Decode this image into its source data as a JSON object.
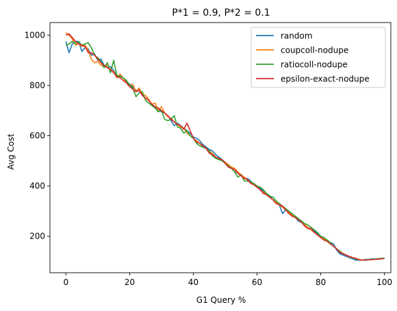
{
  "chart_data": {
    "type": "line",
    "title": "P*1 = 0.9, P*2 = 0.1",
    "xlabel": "G1 Query %",
    "ylabel": "Avg Cost",
    "xlim": [
      -5,
      102
    ],
    "ylim": [
      55,
      1050
    ],
    "xticks": [
      0,
      20,
      40,
      60,
      80,
      100
    ],
    "yticks": [
      200,
      400,
      600,
      800,
      1000
    ],
    "legend_position": "top-right",
    "x": [
      0,
      1,
      2,
      3,
      4,
      5,
      6,
      7,
      8,
      9,
      10,
      11,
      12,
      13,
      14,
      15,
      16,
      17,
      18,
      19,
      20,
      21,
      22,
      23,
      24,
      25,
      26,
      27,
      28,
      29,
      30,
      31,
      32,
      33,
      34,
      35,
      36,
      37,
      38,
      39,
      40,
      41,
      42,
      43,
      44,
      45,
      46,
      47,
      48,
      49,
      50,
      51,
      52,
      53,
      54,
      55,
      56,
      57,
      58,
      59,
      60,
      61,
      62,
      63,
      64,
      65,
      66,
      67,
      68,
      69,
      70,
      71,
      72,
      73,
      74,
      75,
      76,
      77,
      78,
      79,
      80,
      81,
      82,
      83,
      84,
      85,
      86,
      87,
      88,
      89,
      90,
      91,
      92,
      93,
      94,
      95,
      96,
      97,
      98,
      99,
      100
    ],
    "series": [
      {
        "name": "random",
        "color": "#1f77b4",
        "values": [
          975,
          930,
          965,
          975,
          975,
          935,
          950,
          945,
          920,
          925,
          900,
          905,
          880,
          870,
          875,
          860,
          835,
          840,
          830,
          815,
          805,
          795,
          780,
          785,
          760,
          750,
          740,
          725,
          715,
          705,
          695,
          690,
          680,
          660,
          640,
          650,
          640,
          630,
          620,
          610,
          595,
          590,
          580,
          565,
          555,
          545,
          540,
          525,
          515,
          505,
          495,
          485,
          470,
          455,
          455,
          445,
          430,
          430,
          420,
          405,
          400,
          390,
          380,
          365,
          355,
          355,
          340,
          325,
          290,
          305,
          295,
          285,
          275,
          260,
          255,
          245,
          235,
          230,
          220,
          210,
          200,
          185,
          180,
          175,
          170,
          145,
          130,
          125,
          120,
          115,
          110,
          105,
          105,
          105,
          108,
          108,
          110,
          110,
          111,
          112,
          113
        ]
      },
      {
        "name": "coupcoll-nodupe",
        "color": "#ff7f0e",
        "values": [
          1010,
          1000,
          985,
          960,
          965,
          955,
          960,
          940,
          905,
          890,
          895,
          880,
          875,
          880,
          860,
          855,
          830,
          845,
          830,
          810,
          800,
          805,
          775,
          790,
          765,
          760,
          745,
          725,
          730,
          700,
          715,
          690,
          675,
          670,
          655,
          645,
          635,
          630,
          610,
          600,
          590,
          580,
          570,
          555,
          550,
          540,
          530,
          515,
          510,
          500,
          495,
          485,
          475,
          470,
          455,
          445,
          435,
          425,
          415,
          405,
          395,
          385,
          375,
          365,
          355,
          345,
          335,
          325,
          315,
          305,
          295,
          285,
          275,
          265,
          255,
          245,
          235,
          225,
          215,
          205,
          195,
          190,
          180,
          170,
          160,
          150,
          140,
          132,
          125,
          118,
          115,
          112,
          108,
          106,
          106,
          107,
          108,
          109,
          110,
          111,
          112
        ]
      },
      {
        "name": "ratiocoll-nodupe",
        "color": "#2ca02c",
        "values": [
          960,
          965,
          975,
          965,
          975,
          960,
          965,
          970,
          950,
          920,
          910,
          895,
          870,
          890,
          850,
          900,
          840,
          835,
          830,
          820,
          800,
          790,
          755,
          770,
          775,
          740,
          730,
          720,
          710,
          695,
          700,
          665,
          660,
          665,
          680,
          635,
          630,
          610,
          620,
          600,
          590,
          570,
          560,
          555,
          550,
          540,
          520,
          510,
          505,
          500,
          490,
          480,
          470,
          455,
          435,
          445,
          420,
          420,
          415,
          410,
          400,
          395,
          385,
          370,
          360,
          355,
          340,
          330,
          320,
          310,
          300,
          290,
          280,
          270,
          260,
          250,
          245,
          235,
          225,
          215,
          200,
          195,
          185,
          175,
          160,
          150,
          140,
          130,
          125,
          120,
          115,
          110,
          107,
          105,
          106,
          107,
          108,
          109,
          110,
          112,
          113
        ]
      },
      {
        "name": "epsilon-exact-nodupe",
        "color": "#d62728",
        "values": [
          1000,
          1005,
          990,
          975,
          965,
          960,
          955,
          930,
          930,
          920,
          905,
          890,
          880,
          870,
          865,
          850,
          835,
          830,
          820,
          810,
          795,
          785,
          775,
          780,
          760,
          750,
          740,
          725,
          715,
          710,
          700,
          690,
          680,
          665,
          655,
          645,
          640,
          625,
          650,
          620,
          590,
          575,
          570,
          560,
          550,
          530,
          525,
          515,
          510,
          505,
          490,
          475,
          470,
          465,
          450,
          440,
          430,
          425,
          410,
          405,
          395,
          385,
          370,
          365,
          355,
          345,
          330,
          325,
          320,
          305,
          290,
          280,
          275,
          265,
          255,
          240,
          230,
          230,
          215,
          205,
          195,
          185,
          180,
          170,
          160,
          150,
          135,
          130,
          125,
          120,
          115,
          112,
          106,
          105,
          105,
          106,
          107,
          108,
          109,
          110,
          112
        ]
      }
    ]
  }
}
